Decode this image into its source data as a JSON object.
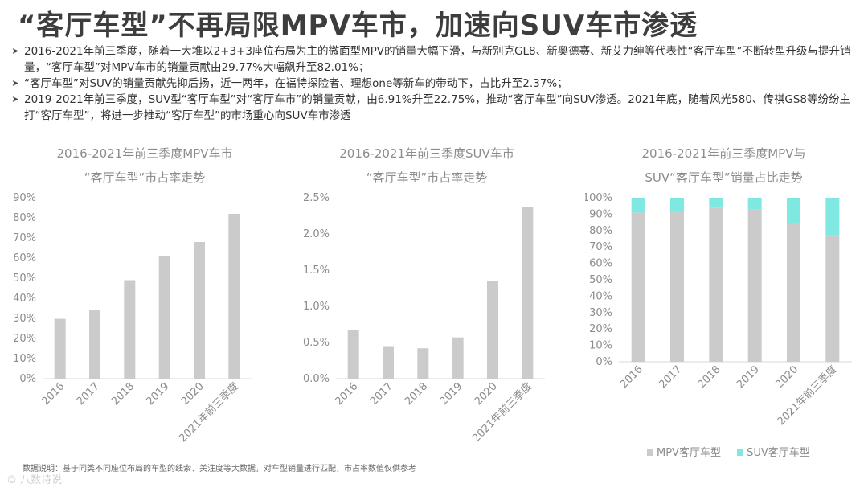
{
  "title": "“客厅车型”不再局限MPV车市，加速向SUV车市渗透",
  "bullets": [
    "2016-2021年前三季度，随着一大堆以2+3+3座位布局为主的微面型MPV的销量大幅下滑，与新别克GL8、新奥德赛、新艾力绅等代表性“客厅车型”不断转型升级与提升销量，“客厅车型”对MPV车市的销量贡献由29.77%大幅飙升至82.01%；",
    "“客厅车型”对SUV的销量贡献先抑后扬，近一两年，在福特探险者、理想one等新车的带动下，占比升至2.37%；",
    "2019-2021年前三季度，SUV型“客厅车型”对“客厅车市”的销量贡献，由6.91%升至22.75%，推动“客厅车型”向SUV渗透。2021年底，随着风光580、传祺GS8等纷纷主打“客厅车型”，将进一步推动“客厅车型”的市场重心向SUV车市渗透"
  ],
  "bullet_icon": "arrow-bullet-icon",
  "footnote": "数据说明：基于同类不同座位布局的车型的线索、关注度等大数据，对车型销量进行匹配，市占率数值仅供参考",
  "brand": "© 八数诗说",
  "colors": {
    "bar": "#cbcbcb",
    "mpv": "#cbcbcb",
    "suv": "#7fe8e1",
    "axis_text": "#8c8c8c"
  },
  "chart_data": [
    {
      "type": "bar",
      "title_line1": "2016-2021年前三季度MPV车市",
      "title_line2": "“客厅车型”市占率走势",
      "categories": [
        "2016",
        "2017",
        "2018",
        "2019",
        "2020",
        "2021年前三季度"
      ],
      "values": [
        0.2977,
        0.34,
        0.49,
        0.61,
        0.68,
        0.8201
      ],
      "ylim": [
        0,
        0.9
      ],
      "yticks": [
        "0%",
        "10%",
        "20%",
        "30%",
        "40%",
        "50%",
        "60%",
        "70%",
        "80%",
        "90%"
      ],
      "grid": false
    },
    {
      "type": "bar",
      "title_line1": "2016-2021年前三季度SUV车市",
      "title_line2": "“客厅车型”市占率走势",
      "categories": [
        "2016",
        "2017",
        "2018",
        "2019",
        "2020",
        "2021年前三季度"
      ],
      "values": [
        0.0067,
        0.0045,
        0.0042,
        0.0057,
        0.0135,
        0.0237
      ],
      "ylim": [
        0,
        0.025
      ],
      "yticks": [
        "0.0%",
        "0.5%",
        "1.0%",
        "1.5%",
        "2.0%",
        "2.5%"
      ],
      "grid": false
    },
    {
      "type": "bar",
      "stacked": true,
      "title_line1": "2016-2021年前三季度MPV与",
      "title_line2": "SUV“客厅车型”销量占比走势",
      "categories": [
        "2016",
        "2017",
        "2018",
        "2019",
        "2020",
        "2021年前三季度"
      ],
      "series": [
        {
          "name": "MPV客厅车型",
          "values": [
            0.91,
            0.92,
            0.94,
            0.9309,
            0.8431,
            0.7725
          ]
        },
        {
          "name": "SUV客厅车型",
          "values": [
            0.09,
            0.08,
            0.06,
            0.0691,
            0.1569,
            0.2275
          ]
        }
      ],
      "ylim": [
        0,
        1
      ],
      "yticks": [
        "0%",
        "10%",
        "20%",
        "30%",
        "40%",
        "50%",
        "60%",
        "70%",
        "80%",
        "90%",
        "100%"
      ],
      "legend_position": "bottom",
      "grid": false
    }
  ]
}
